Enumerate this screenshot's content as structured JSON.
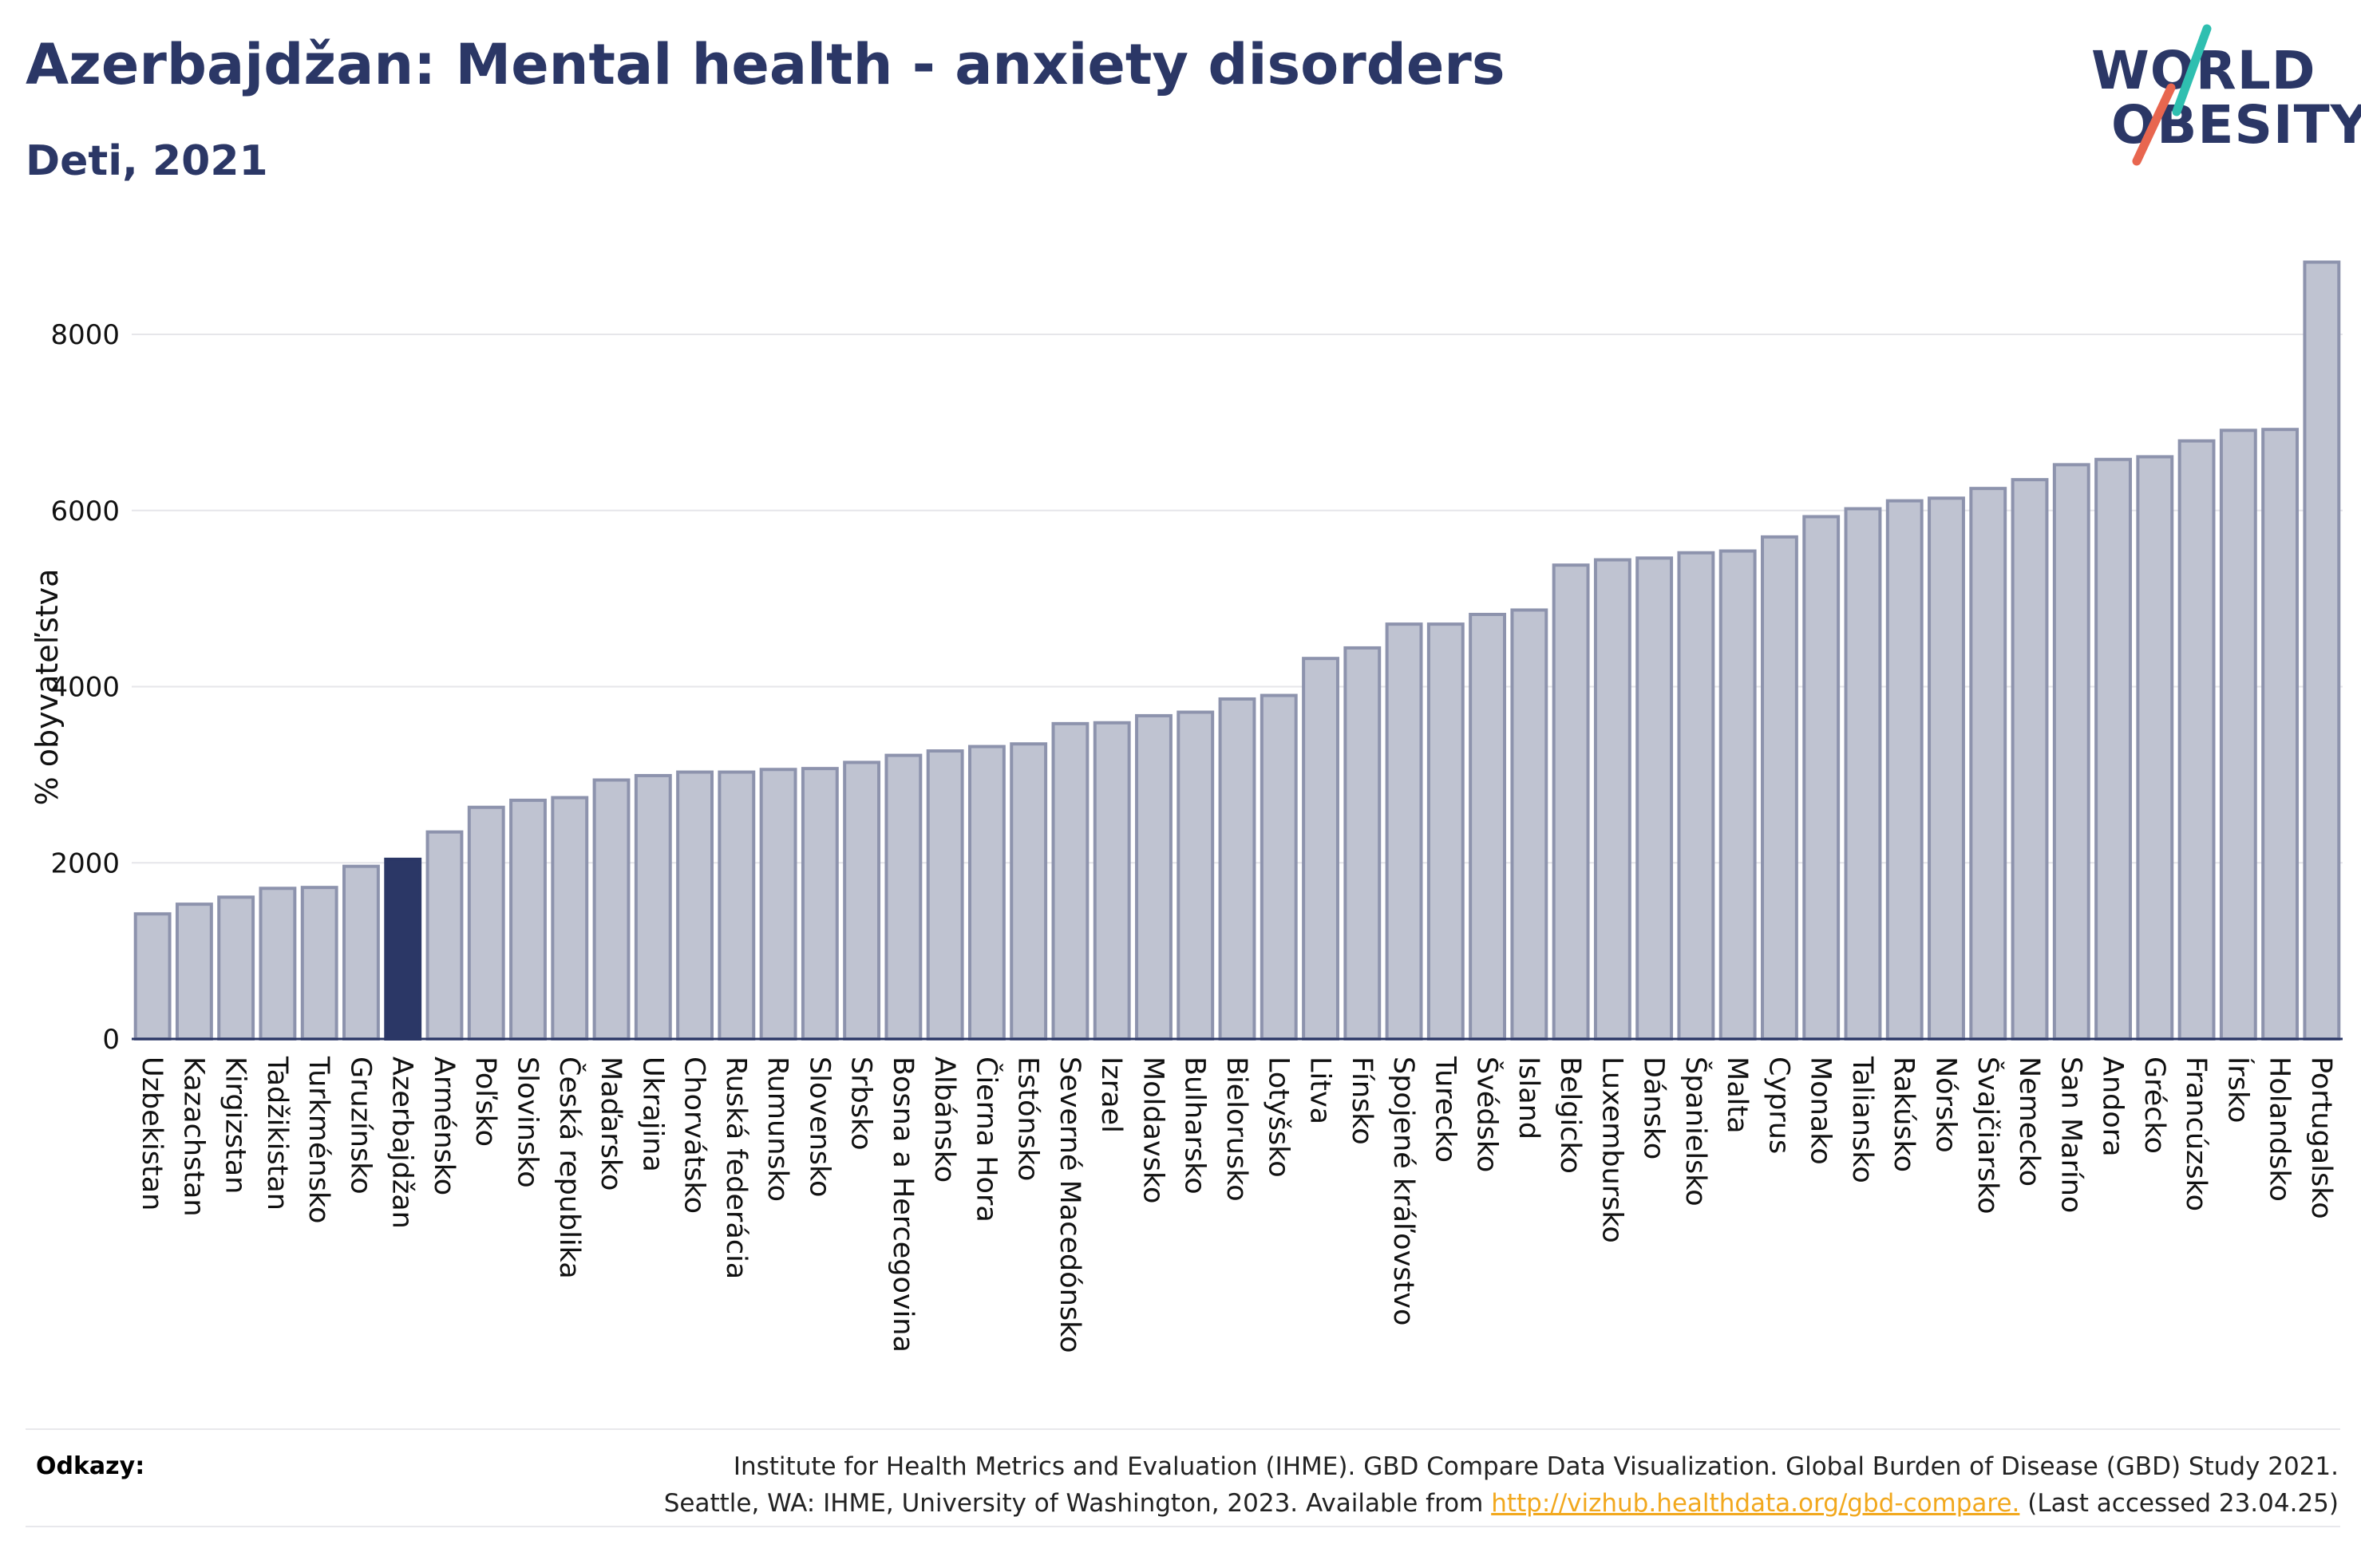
{
  "header": {
    "title": "Azerbajdžan: Mental health - anxiety disorders",
    "subtitle": "Deti, 2021"
  },
  "logo": {
    "line1": "WORLD",
    "line2": "OBESITY",
    "slash_colors": [
      "#2fbfb0",
      "#e8664f"
    ]
  },
  "colors": {
    "bar": "#bfc3d1",
    "bar_stroke": "#8d93ad",
    "highlight": "#2b3766",
    "text_dark": "#2b3766",
    "link": "#f2a81d"
  },
  "chart_data": {
    "type": "bar",
    "title": "",
    "xlabel": "",
    "ylabel": "% obyvateľstva",
    "ylim": [
      0,
      9000
    ],
    "yticks": [
      0,
      2000,
      4000,
      6000,
      8000
    ],
    "grid": true,
    "highlight_category": "Azerbajdžan",
    "categories": [
      "Uzbekistan",
      "Kazachstan",
      "Kirgizstan",
      "Tadžikistan",
      "Turkménsko",
      "Gruzínsko",
      "Azerbajdžan",
      "Arménsko",
      "Poľsko",
      "Slovinsko",
      "Česká republika",
      "Maďarsko",
      "Ukrajina",
      "Chorvátsko",
      "Ruská federácia",
      "Rumunsko",
      "Slovensko",
      "Srbsko",
      "Bosna a Hercegovina",
      "Albánsko",
      "Čierna Hora",
      "Estónsko",
      "Severné Macedónsko",
      "Izrael",
      "Moldavsko",
      "Bulharsko",
      "Bielorusko",
      "Lotyšsko",
      "Litva",
      "Fínsko",
      "Spojené kráľovstvo",
      "Turecko",
      "Švédsko",
      "Island",
      "Belgicko",
      "Luxembursko",
      "Dánsko",
      "Španielsko",
      "Malta",
      "Cyprus",
      "Monako",
      "Taliansko",
      "Rakúsko",
      "Nórsko",
      "Švajčiarsko",
      "Nemecko",
      "San Maríno",
      "Andora",
      "Grécko",
      "Francúzsko",
      "Írsko",
      "Holandsko",
      "Portugalsko"
    ],
    "values": [
      1420,
      1530,
      1610,
      1710,
      1720,
      1960,
      2040,
      2350,
      2630,
      2710,
      2740,
      2940,
      2990,
      3030,
      3030,
      3060,
      3070,
      3140,
      3220,
      3270,
      3320,
      3350,
      3580,
      3590,
      3670,
      3710,
      3860,
      3900,
      4320,
      4440,
      4710,
      4710,
      4820,
      4870,
      5380,
      5440,
      5460,
      5520,
      5540,
      5700,
      5930,
      6020,
      6110,
      6140,
      6250,
      6350,
      6520,
      6580,
      6610,
      6790,
      6910,
      6920,
      8820
    ]
  },
  "references": {
    "label": "Odkazy:",
    "line1": "Institute for Health Metrics and Evaluation (IHME). GBD Compare Data Visualization. Global Burden of Disease (GBD) Study 2021.",
    "line2_prefix": "Seattle, WA: IHME, University of Washington, 2023. Available from ",
    "link": "http://vizhub.healthdata.org/gbd-compare.",
    "line2_suffix": " (Last accessed 23.04.25)"
  }
}
